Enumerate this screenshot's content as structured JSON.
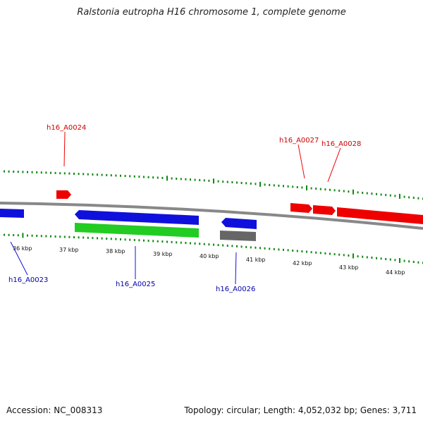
{
  "header": {
    "title": "Ralstonia eutropha H16 chromosome 1, complete genome"
  },
  "footer": {
    "accession": "Accession: NC_008313",
    "summary": "Topology: circular; Length: 4,052,032 bp; Genes: 3,711"
  },
  "colors": {
    "forward_gene": "#ee0000",
    "reverse_gene": "#1010dd",
    "rna_gene": "#22cc22",
    "other_gene": "#666666",
    "backbone": "#888888",
    "tick": "#118811"
  },
  "scale_labels": [
    "36 kbp",
    "37 kbp",
    "38 kbp",
    "39 kbp",
    "40 kbp",
    "41 kbp",
    "42 kbp",
    "43 kbp",
    "44 kbp"
  ],
  "gene_labels": [
    "h16_A0024",
    "h16_A0027",
    "h16_A0028",
    "h16_A0023",
    "h16_A0025",
    "h16_A0026"
  ]
}
